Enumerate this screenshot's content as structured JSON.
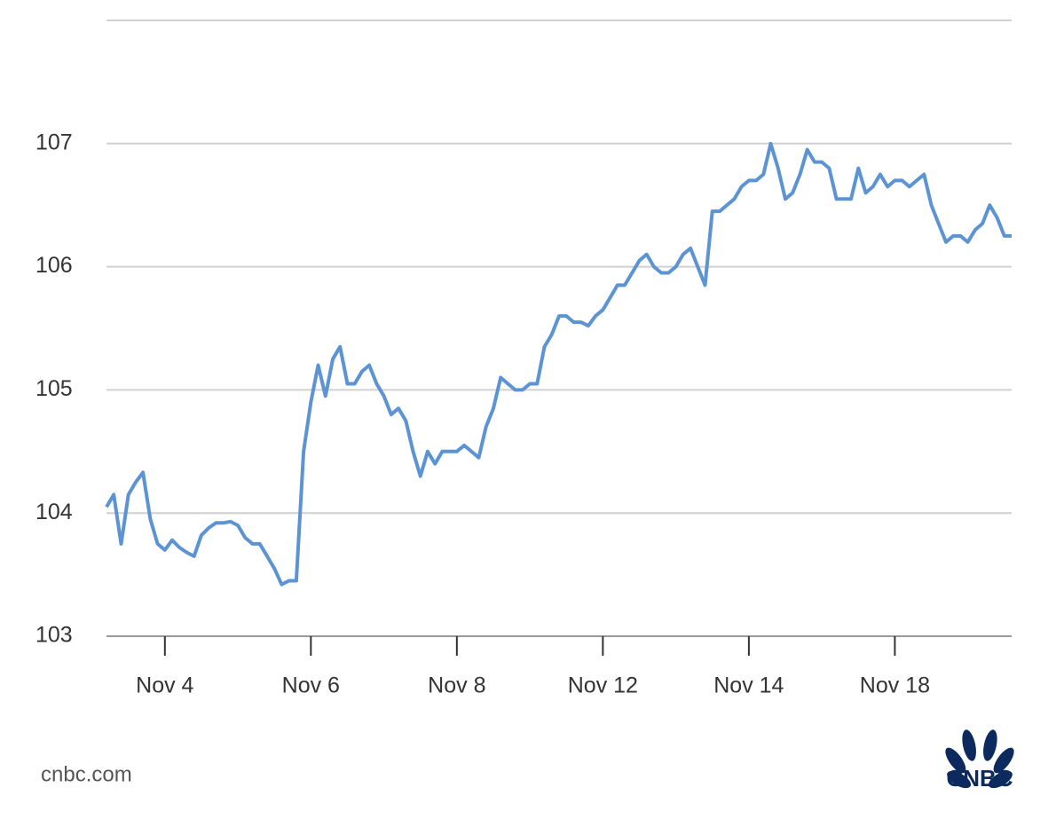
{
  "chart_data": {
    "type": "line",
    "categories": [
      null,
      null,
      null,
      null,
      null,
      null,
      null,
      null,
      "Nov 4",
      null,
      null,
      null,
      null,
      null,
      null,
      null,
      null,
      null,
      null,
      null,
      null,
      null,
      null,
      null,
      null,
      null,
      null,
      null,
      "Nov 6",
      null,
      null,
      null,
      null,
      null,
      null,
      null,
      null,
      null,
      null,
      null,
      null,
      null,
      null,
      null,
      null,
      null,
      null,
      null,
      "Nov 8",
      null,
      null,
      null,
      null,
      null,
      null,
      null,
      null,
      null,
      null,
      null,
      null,
      null,
      null,
      null,
      null,
      null,
      null,
      null,
      "Nov 12",
      null,
      null,
      null,
      null,
      null,
      null,
      null,
      null,
      null,
      null,
      null,
      null,
      null,
      null,
      null,
      null,
      null,
      null,
      null,
      "Nov 14",
      null,
      null,
      null,
      null,
      null,
      null,
      null,
      null,
      null,
      null,
      null,
      null,
      null,
      null,
      null,
      null,
      null,
      null,
      null,
      "Nov 18",
      null,
      null,
      null,
      null,
      null,
      null,
      null,
      null,
      null,
      null,
      null,
      null,
      null,
      null,
      null,
      null
    ],
    "values": [
      104.05,
      104.15,
      103.75,
      104.15,
      104.25,
      104.33,
      103.95,
      103.75,
      103.7,
      103.78,
      103.72,
      103.68,
      103.65,
      103.82,
      103.88,
      103.92,
      103.92,
      103.93,
      103.9,
      103.8,
      103.75,
      103.75,
      103.65,
      103.55,
      103.42,
      103.45,
      103.45,
      104.5,
      104.9,
      105.2,
      104.95,
      105.25,
      105.35,
      105.05,
      105.05,
      105.15,
      105.2,
      105.05,
      104.95,
      104.8,
      104.85,
      104.75,
      104.5,
      104.3,
      104.5,
      104.4,
      104.5,
      104.5,
      104.5,
      104.55,
      104.5,
      104.45,
      104.7,
      104.85,
      105.1,
      105.05,
      105.0,
      105.0,
      105.05,
      105.05,
      105.35,
      105.45,
      105.6,
      105.6,
      105.55,
      105.55,
      105.52,
      105.6,
      105.65,
      105.75,
      105.85,
      105.85,
      105.95,
      106.05,
      106.1,
      106.0,
      105.95,
      105.95,
      106.0,
      106.1,
      106.15,
      106.0,
      105.85,
      106.45,
      106.45,
      106.5,
      106.55,
      106.65,
      106.7,
      106.7,
      106.75,
      107.0,
      106.8,
      106.55,
      106.6,
      106.75,
      106.95,
      106.85,
      106.85,
      106.8,
      106.55,
      106.55,
      106.55,
      106.8,
      106.6,
      106.65,
      106.75,
      106.65,
      106.7,
      106.7,
      106.65,
      106.7,
      106.75,
      106.5,
      106.35,
      106.2,
      106.25,
      106.25,
      106.2,
      106.3,
      106.35,
      106.5,
      106.4,
      106.25,
      106.25
    ],
    "color": "#5b93d3",
    "ylim": [
      103,
      108
    ],
    "yticks": [
      103,
      104,
      105,
      106,
      107
    ],
    "grid": true
  },
  "source": "cnbc.com",
  "logo_text": "CNBC"
}
